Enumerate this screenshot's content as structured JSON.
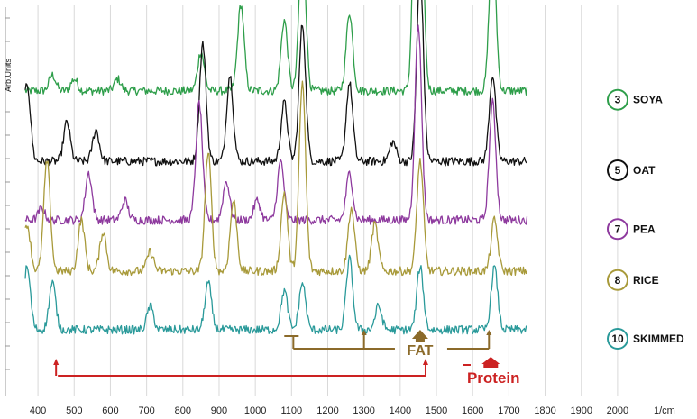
{
  "chart_data": {
    "type": "line",
    "xlabel": "",
    "x_unit_label": "1/cm",
    "ylabel": "Arb.Units",
    "xlim": [
      350,
      2050
    ],
    "x_ticks": [
      400,
      500,
      600,
      700,
      800,
      900,
      1000,
      1100,
      1200,
      1300,
      1400,
      1500,
      1600,
      1700,
      1800,
      1900,
      2000
    ],
    "grid": "vertical",
    "series": [
      {
        "name": "SOYA",
        "badge": "3",
        "color": "#2E9E4A",
        "baseline": 0.78,
        "peaks": [
          [
            440,
            0.04
          ],
          [
            500,
            0.03
          ],
          [
            620,
            0.03
          ],
          [
            850,
            0.1
          ],
          [
            960,
            0.22
          ],
          [
            1080,
            0.18
          ],
          [
            1130,
            0.4
          ],
          [
            1260,
            0.2
          ],
          [
            1445,
            0.62
          ],
          [
            1455,
            0.55
          ],
          [
            1655,
            0.4
          ]
        ]
      },
      {
        "name": "OAT",
        "badge": "5",
        "color": "#111111",
        "baseline": 0.6,
        "peaks": [
          [
            370,
            0.2
          ],
          [
            480,
            0.1
          ],
          [
            560,
            0.08
          ],
          [
            855,
            0.3
          ],
          [
            930,
            0.22
          ],
          [
            1080,
            0.15
          ],
          [
            1130,
            0.35
          ],
          [
            1260,
            0.2
          ],
          [
            1380,
            0.05
          ],
          [
            1455,
            0.48
          ],
          [
            1655,
            0.22
          ]
        ]
      },
      {
        "name": "PEA",
        "badge": "7",
        "color": "#8E3A9E",
        "baseline": 0.45,
        "peaks": [
          [
            410,
            0.03
          ],
          [
            540,
            0.12
          ],
          [
            640,
            0.05
          ],
          [
            845,
            0.3
          ],
          [
            920,
            0.1
          ],
          [
            1005,
            0.05
          ],
          [
            1070,
            0.15
          ],
          [
            1260,
            0.12
          ],
          [
            1450,
            0.5
          ],
          [
            1655,
            0.3
          ]
        ]
      },
      {
        "name": "RICE",
        "badge": "8",
        "color": "#A89A3A",
        "baseline": 0.32,
        "peaks": [
          [
            370,
            0.12
          ],
          [
            425,
            0.28
          ],
          [
            520,
            0.13
          ],
          [
            580,
            0.1
          ],
          [
            710,
            0.05
          ],
          [
            870,
            0.3
          ],
          [
            940,
            0.18
          ],
          [
            1080,
            0.2
          ],
          [
            1130,
            0.48
          ],
          [
            1265,
            0.16
          ],
          [
            1330,
            0.12
          ],
          [
            1455,
            0.28
          ],
          [
            1660,
            0.13
          ]
        ]
      },
      {
        "name": "SKIMMED",
        "badge": "10",
        "color": "#2A9A9A",
        "baseline": 0.17,
        "peaks": [
          [
            370,
            0.16
          ],
          [
            440,
            0.12
          ],
          [
            710,
            0.06
          ],
          [
            870,
            0.12
          ],
          [
            1080,
            0.1
          ],
          [
            1130,
            0.12
          ],
          [
            1260,
            0.18
          ],
          [
            1340,
            0.06
          ],
          [
            1455,
            0.16
          ],
          [
            1660,
            0.16
          ]
        ]
      }
    ],
    "annotations": {
      "fat": {
        "label": "FAT",
        "color": "#8B6A2A",
        "bracket_x": [
          1080,
          1105
        ],
        "markers": [
          1300,
          1645
        ],
        "arrow_x": 1455
      },
      "protein": {
        "label": "Protein",
        "color": "#CC2222",
        "markers": [
          450,
          1470
        ],
        "bar_x": [
          455,
          1470
        ],
        "icon_x": 1650
      }
    }
  }
}
